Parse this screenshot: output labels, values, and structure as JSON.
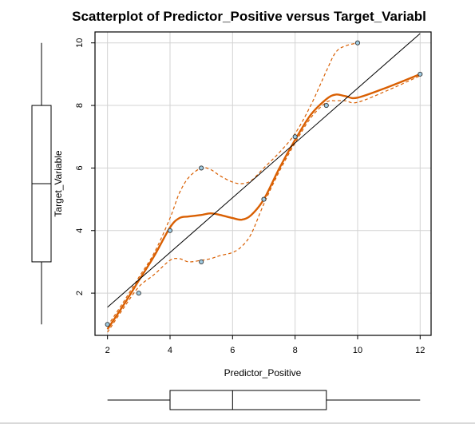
{
  "chart_data": {
    "type": "scatter",
    "title": "Scatterplot of Predictor_Positive versus Target_Variabl",
    "xlabel": "Predictor_Positive",
    "ylabel": "Target_Variable",
    "xlim": [
      1.6,
      12.35
    ],
    "ylim": [
      0.65,
      10.35
    ],
    "x_ticks": [
      2,
      4,
      6,
      8,
      10,
      12
    ],
    "y_ticks": [
      2,
      4,
      6,
      8,
      10
    ],
    "grid": true,
    "points": [
      {
        "x": 2,
        "y": 1
      },
      {
        "x": 3,
        "y": 2
      },
      {
        "x": 4,
        "y": 4
      },
      {
        "x": 5,
        "y": 6
      },
      {
        "x": 5,
        "y": 3
      },
      {
        "x": 7,
        "y": 5
      },
      {
        "x": 8,
        "y": 7
      },
      {
        "x": 9,
        "y": 8
      },
      {
        "x": 10,
        "y": 10
      },
      {
        "x": 12,
        "y": 9
      }
    ],
    "regression_line": {
      "x": [
        2,
        12
      ],
      "y": [
        1.55,
        10.3
      ]
    },
    "smooth": {
      "x": [
        2,
        2.5,
        3,
        3.5,
        4,
        4.3,
        4.6,
        5,
        5.3,
        5.6,
        6,
        6.3,
        6.6,
        7,
        7.5,
        8,
        8.5,
        9,
        9.3,
        9.6,
        10,
        11,
        12
      ],
      "y": [
        0.85,
        1.6,
        2.4,
        3.2,
        4.1,
        4.4,
        4.45,
        4.5,
        4.55,
        4.5,
        4.4,
        4.35,
        4.5,
        5.0,
        6.0,
        6.9,
        7.7,
        8.2,
        8.35,
        8.3,
        8.25,
        8.6,
        9.0
      ]
    },
    "upper_band": {
      "x": [
        2,
        2.5,
        3,
        3.5,
        4,
        4.3,
        4.6,
        5,
        5.3,
        5.6,
        6,
        6.3,
        6.6,
        7,
        7.5,
        8,
        8.5,
        9,
        9.3,
        9.6,
        10,
        11,
        12
      ],
      "y": [
        0.95,
        1.7,
        2.5,
        3.3,
        4.4,
        5.2,
        5.7,
        6.0,
        5.95,
        5.75,
        5.55,
        5.5,
        5.6,
        6.0,
        6.5,
        7.1,
        8.0,
        9.1,
        9.7,
        9.9,
        10.0,
        null,
        null
      ]
    },
    "lower_band": {
      "x": [
        2,
        2.5,
        3,
        3.5,
        4,
        4.3,
        4.6,
        5,
        5.3,
        5.6,
        6,
        6.3,
        6.6,
        7,
        7.5,
        8,
        8.5,
        9,
        9.3,
        9.6,
        10,
        11,
        12
      ],
      "y": [
        0.75,
        1.5,
        2.2,
        2.6,
        3.05,
        3.1,
        3.0,
        3.05,
        3.1,
        3.2,
        3.3,
        3.5,
        3.9,
        4.85,
        5.9,
        6.8,
        7.6,
        8.1,
        8.15,
        8.15,
        8.1,
        8.5,
        8.95
      ]
    },
    "x_boxplot": {
      "whisker_low": 2,
      "q1": 4,
      "median": 6,
      "q3": 9,
      "whisker_high": 12
    },
    "y_boxplot": {
      "whisker_low": 1,
      "q1": 3,
      "median": 5.5,
      "q3": 8,
      "whisker_high": 10
    },
    "colors": {
      "smooth": "#d95f02",
      "points_fill": "#9ecae1",
      "points_edge": "#333333",
      "regression": "#000000",
      "grid": "#d3d3d3"
    }
  }
}
